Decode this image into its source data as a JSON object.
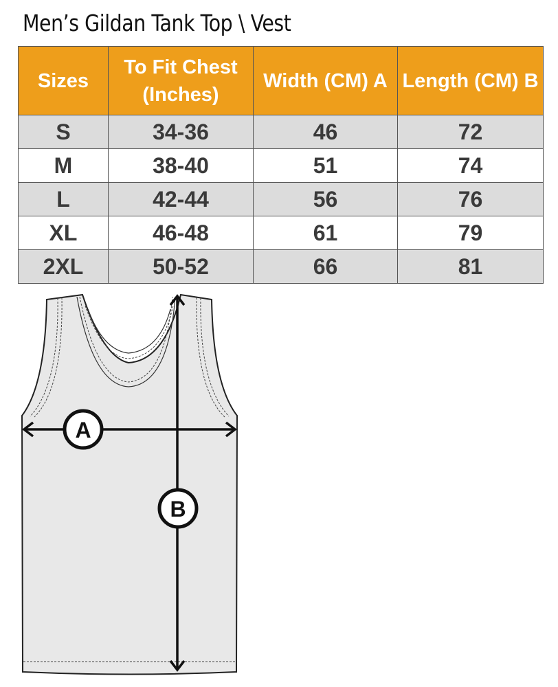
{
  "title": "Men’s Gildan Tank Top \\ Vest",
  "table": {
    "headers": [
      "Sizes",
      "To Fit Chest (Inches)",
      "Width (CM) A",
      "Length  (CM) B"
    ],
    "rows": [
      [
        "S",
        "34-36",
        "46",
        "72"
      ],
      [
        "M",
        "38-40",
        "51",
        "74"
      ],
      [
        "L",
        "42-44",
        "56",
        "76"
      ],
      [
        "XL",
        "46-48",
        "61",
        "79"
      ],
      [
        "2XL",
        "50-52",
        "66",
        "81"
      ]
    ]
  },
  "diagram": {
    "label_a": "A",
    "label_b": "B"
  },
  "colors": {
    "header": "#EE9E1B",
    "row_alt": "#DCDCDC",
    "garment": "#E8E8E8"
  }
}
